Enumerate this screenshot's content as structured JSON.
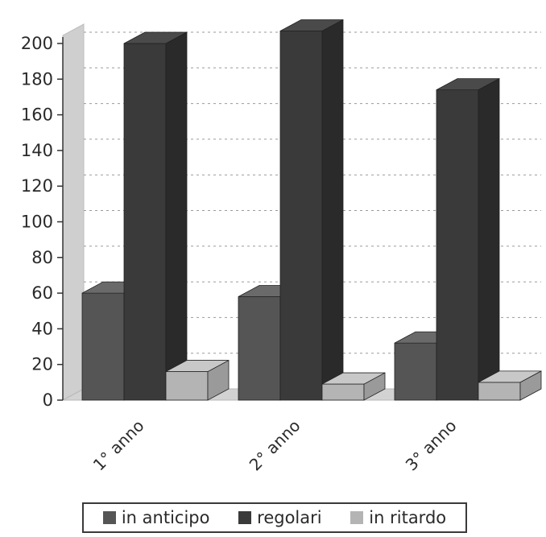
{
  "chart_data": {
    "type": "bar",
    "categories": [
      "1° anno",
      "2° anno",
      "3° anno"
    ],
    "series": [
      {
        "name": "in anticipo",
        "values": [
          60,
          58,
          32
        ],
        "color": "#555555",
        "side": "#444444",
        "top": "#6a6a6a"
      },
      {
        "name": "regolari",
        "values": [
          200,
          207,
          174
        ],
        "color": "#3a3a3a",
        "side": "#2a2a2a",
        "top": "#4a4a4a"
      },
      {
        "name": "in ritardo",
        "values": [
          16,
          9,
          10
        ],
        "color": "#b4b4b4",
        "side": "#9a9a9a",
        "top": "#c8c8c8"
      }
    ],
    "yticks": [
      0,
      20,
      40,
      60,
      80,
      100,
      120,
      140,
      160,
      180,
      200
    ],
    "ylim": [
      0,
      200
    ],
    "grid": true,
    "legend_position": "bottom",
    "style": "3d"
  },
  "legend": {
    "items": [
      {
        "label": "in anticipo",
        "color": "#555555"
      },
      {
        "label": "regolari",
        "color": "#3a3a3a"
      },
      {
        "label": "in ritardo",
        "color": "#b4b4b4"
      }
    ]
  }
}
